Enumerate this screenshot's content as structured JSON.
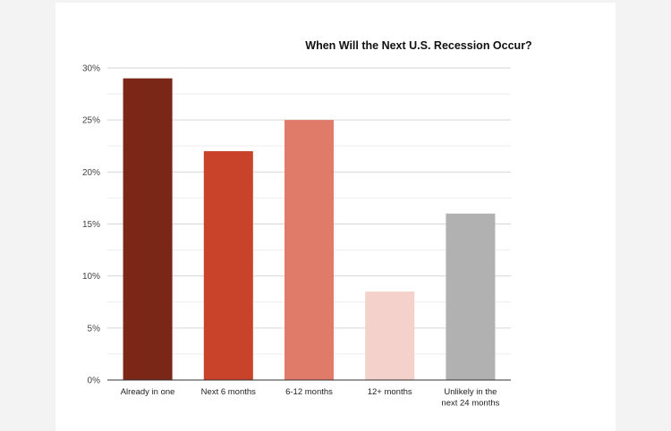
{
  "chart_data": {
    "type": "bar",
    "title": "When Will the Next U.S. Recession Occur?",
    "xlabel": "",
    "ylabel": "",
    "categories": [
      "Already in one",
      "Next 6 months",
      "6-12 months",
      "12+ months",
      "Unlikely in the next 24 months"
    ],
    "category_lines": [
      [
        "Already in one"
      ],
      [
        "Next 6 months"
      ],
      [
        "6-12 months"
      ],
      [
        "12+ months"
      ],
      [
        "Unlikely in the",
        "next 24 months"
      ]
    ],
    "values": [
      29,
      22,
      25,
      8.5,
      16
    ],
    "colors": [
      "#7a2718",
      "#c9432b",
      "#e07a69",
      "#f4d1ca",
      "#b1b1b1"
    ],
    "ylim": [
      0,
      30
    ],
    "yticks": [
      0,
      5,
      10,
      15,
      20,
      25,
      30
    ],
    "ytick_labels": [
      "0%",
      "5%",
      "10%",
      "15%",
      "20%",
      "25%",
      "30%"
    ],
    "grid": true,
    "legend": "none"
  }
}
